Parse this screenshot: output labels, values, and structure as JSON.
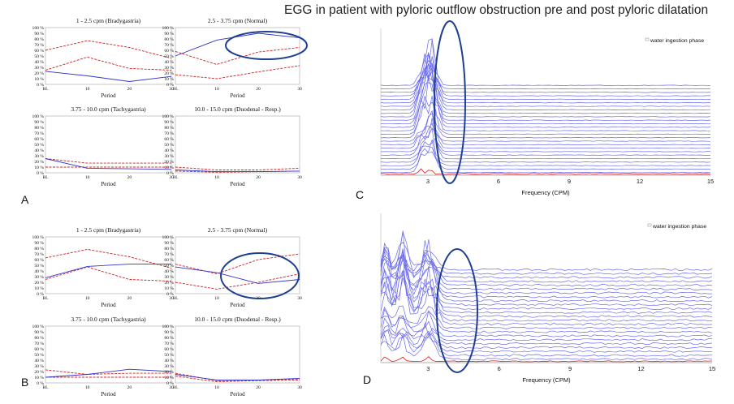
{
  "title": "EGG in patient with pyloric outflow obstruction pre and post pyloric dilatation",
  "panel_labels": [
    "A",
    "B",
    "C",
    "D"
  ],
  "y_ticks": [
    "0 %",
    "10 %",
    "20 %",
    "30 %",
    "40 %",
    "50 %",
    "60 %",
    "70 %",
    "80 %",
    "90 %",
    "100 %"
  ],
  "period_ticks": [
    "BL",
    "10",
    "20",
    "30"
  ],
  "period_axis_label": "Period",
  "freq_ticks": [
    "3",
    "6",
    "9",
    "12",
    "15"
  ],
  "freq_axis_label": "Frequency (CPM)",
  "legend_text": "water ingestion phase",
  "colors": {
    "red": "#cc2222",
    "blue": "#3333cc",
    "ellipse": "#1f3f8f",
    "trace": "#6a6aea"
  },
  "chart_data": [
    {
      "id": "A1",
      "type": "line",
      "title": "1 - 2.5 cpm (Bradygastria)",
      "xlabel": "Period",
      "categories": [
        "BL",
        "10",
        "20",
        "30"
      ],
      "ylim": [
        0,
        100
      ],
      "series": [
        {
          "values": [
            60,
            77,
            65,
            46
          ],
          "color": "red",
          "dash": true
        },
        {
          "values": [
            25,
            48,
            28,
            25
          ],
          "color": "red",
          "dash": true
        },
        {
          "values": [
            23,
            15,
            5,
            14
          ],
          "color": "blue",
          "dash": false
        }
      ]
    },
    {
      "id": "A2",
      "type": "line",
      "title": "2.5 - 3.75 cpm (Normal)",
      "xlabel": "Period",
      "categories": [
        "BL",
        "10",
        "20",
        "30"
      ],
      "ylim": [
        0,
        100
      ],
      "series": [
        {
          "values": [
            58,
            35,
            57,
            65
          ],
          "color": "red",
          "dash": true
        },
        {
          "values": [
            17,
            10,
            22,
            33
          ],
          "color": "red",
          "dash": true
        },
        {
          "values": [
            50,
            78,
            90,
            82
          ],
          "color": "blue",
          "dash": false
        }
      ]
    },
    {
      "id": "A3",
      "type": "line",
      "title": "3.75 - 10.0 cpm (Tachygastria)",
      "xlabel": "Period",
      "categories": [
        "BL",
        "10",
        "20",
        "30"
      ],
      "ylim": [
        0,
        100
      ],
      "series": [
        {
          "values": [
            25,
            17,
            17,
            17
          ],
          "color": "red",
          "dash": true
        },
        {
          "values": [
            10,
            10,
            10,
            10
          ],
          "color": "red",
          "dash": true
        },
        {
          "values": [
            25,
            8,
            7,
            6
          ],
          "color": "blue",
          "dash": false
        }
      ]
    },
    {
      "id": "A4",
      "type": "line",
      "title": "10.0 - 15.0 cpm (Duodenal - Resp.)",
      "xlabel": "Period",
      "categories": [
        "BL",
        "10",
        "20",
        "30"
      ],
      "ylim": [
        0,
        100
      ],
      "series": [
        {
          "values": [
            10,
            5,
            5,
            8
          ],
          "color": "red",
          "dash": true
        },
        {
          "values": [
            3,
            1,
            2,
            3
          ],
          "color": "red",
          "dash": true
        },
        {
          "values": [
            5,
            2,
            2,
            3
          ],
          "color": "blue",
          "dash": false
        }
      ]
    },
    {
      "id": "B1",
      "type": "line",
      "title": "1 - 2.5 cpm (Bradygastria)",
      "xlabel": "Period",
      "categories": [
        "BL",
        "10",
        "20",
        "30"
      ],
      "ylim": [
        0,
        100
      ],
      "series": [
        {
          "values": [
            63,
            78,
            65,
            45
          ],
          "color": "red",
          "dash": true
        },
        {
          "values": [
            25,
            47,
            25,
            22
          ],
          "color": "red",
          "dash": true
        },
        {
          "values": [
            28,
            48,
            52,
            52
          ],
          "color": "blue",
          "dash": false
        }
      ]
    },
    {
      "id": "B2",
      "type": "line",
      "title": "2.5 - 3.75 cpm (Normal)",
      "xlabel": "Period",
      "categories": [
        "BL",
        "10",
        "20",
        "30"
      ],
      "ylim": [
        0,
        100
      ],
      "series": [
        {
          "values": [
            52,
            35,
            60,
            70
          ],
          "color": "red",
          "dash": true
        },
        {
          "values": [
            20,
            8,
            20,
            35
          ],
          "color": "red",
          "dash": true
        },
        {
          "values": [
            47,
            37,
            18,
            25
          ],
          "color": "blue",
          "dash": false
        }
      ]
    },
    {
      "id": "B3",
      "type": "line",
      "title": "3.75 - 10.0 cpm (Tachygastria)",
      "xlabel": "Period",
      "categories": [
        "BL",
        "10",
        "20",
        "30"
      ],
      "ylim": [
        0,
        100
      ],
      "series": [
        {
          "values": [
            23,
            15,
            17,
            17
          ],
          "color": "red",
          "dash": true
        },
        {
          "values": [
            10,
            10,
            10,
            10
          ],
          "color": "red",
          "dash": true
        },
        {
          "values": [
            10,
            15,
            24,
            20
          ],
          "color": "blue",
          "dash": false
        }
      ]
    },
    {
      "id": "B4",
      "type": "line",
      "title": "10.0 - 15.0 cpm (Duodenal - Resp.)",
      "xlabel": "Period",
      "categories": [
        "BL",
        "10",
        "20",
        "30"
      ],
      "ylim": [
        0,
        100
      ],
      "series": [
        {
          "values": [
            17,
            4,
            5,
            7
          ],
          "color": "red",
          "dash": true
        },
        {
          "values": [
            12,
            2,
            4,
            5
          ],
          "color": "red",
          "dash": true
        },
        {
          "values": [
            15,
            5,
            5,
            8
          ],
          "color": "blue",
          "dash": false
        }
      ]
    },
    {
      "id": "C",
      "type": "area",
      "xlabel": "Frequency (CPM)",
      "xlim": [
        1,
        15
      ],
      "x_ticks": [
        3,
        6,
        9,
        12,
        15
      ],
      "n_traces": 26,
      "peaks_cpm": [
        2.7,
        3.1
      ],
      "legend": "water ingestion phase"
    },
    {
      "id": "D",
      "type": "area",
      "xlabel": "Frequency (CPM)",
      "xlim": [
        1,
        15
      ],
      "x_ticks": [
        3,
        6,
        9,
        12,
        15
      ],
      "n_traces": 24,
      "peaks_cpm": [
        1.2,
        1.9,
        3.0
      ],
      "legend": "water ingestion phase"
    }
  ]
}
